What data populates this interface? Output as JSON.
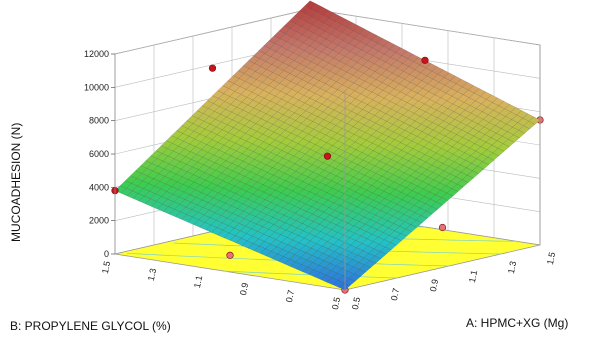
{
  "chart_data": {
    "type": "surface-3d",
    "zlabel": "MUCOADHESION (N)",
    "xlabel": "A: HPMC+XG (Mg)",
    "ylabel": "B: PROPYLENE GLYCOL (%)",
    "x_ticks": [
      "0.5",
      "0.7",
      "0.9",
      "1.1",
      "1.3",
      "1.5"
    ],
    "y_ticks": [
      "0.5",
      "0.7",
      "0.9",
      "1.1",
      "1.3",
      "1.5"
    ],
    "z_ticks": [
      "0",
      "2000",
      "4000",
      "6000",
      "8000",
      "10000",
      "12000"
    ],
    "xlim": [
      0.5,
      1.5
    ],
    "ylim": [
      0.5,
      1.5
    ],
    "zlim": [
      0,
      12000
    ],
    "surface_corners": [
      {
        "x": 0.5,
        "y": 0.5,
        "z": 0
      },
      {
        "x": 1.5,
        "y": 0.5,
        "z": 7500
      },
      {
        "x": 0.5,
        "y": 1.5,
        "z": 3800
      },
      {
        "x": 1.5,
        "y": 1.5,
        "z": 12500
      }
    ],
    "design_points": [
      {
        "x": 0.5,
        "y": 0.5,
        "z": 0,
        "marker": "below"
      },
      {
        "x": 1.0,
        "y": 1.0,
        "z": 5600,
        "marker": "above"
      },
      {
        "x": 1.5,
        "y": 1.0,
        "z": 10000,
        "marker": "above"
      },
      {
        "x": 1.0,
        "y": 1.5,
        "z": 9800,
        "marker": "above"
      },
      {
        "x": 0.5,
        "y": 1.5,
        "z": 3800,
        "marker": "above"
      },
      {
        "x": 1.5,
        "y": 0.5,
        "z": 7500,
        "marker": "below"
      },
      {
        "x": 1.0,
        "y": 0.5,
        "z": 2400,
        "marker": "below"
      },
      {
        "x": 0.5,
        "y": 1.0,
        "z": 1000,
        "marker": "below"
      }
    ],
    "floor_color": "#ffff33",
    "colormap": [
      "#2f6fdf",
      "#24c2c8",
      "#3dcc4f",
      "#a3cc3b",
      "#d9b25d",
      "#c3776a",
      "#b33a3a"
    ]
  }
}
